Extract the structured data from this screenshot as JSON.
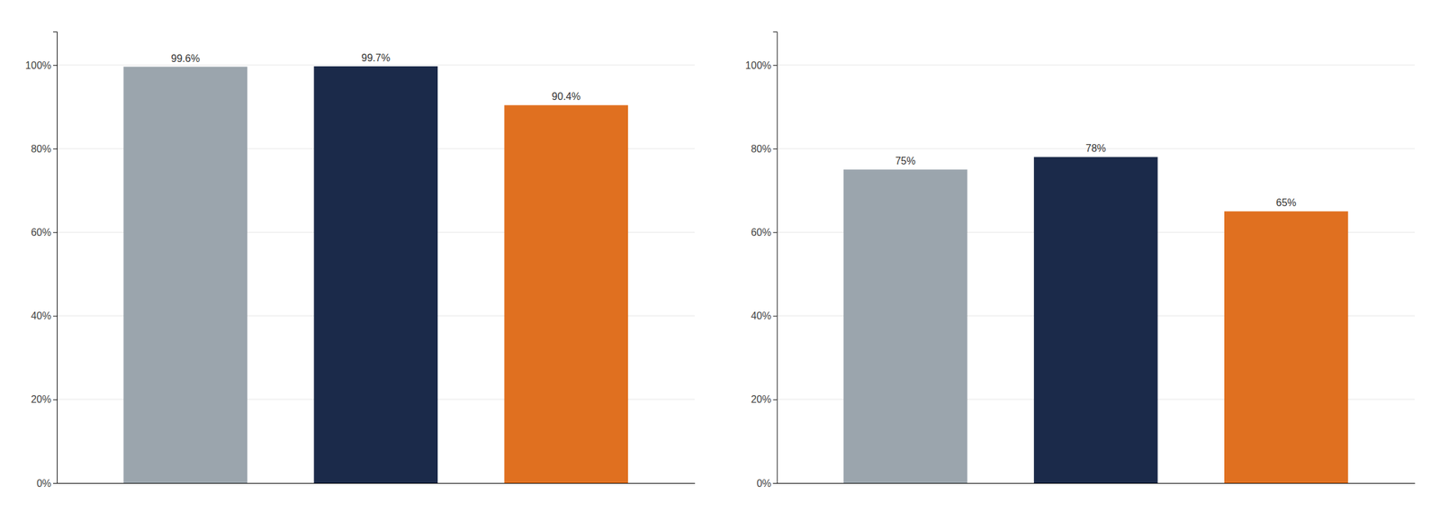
{
  "chart_data": [
    {
      "type": "bar",
      "categories": [
        null,
        null,
        null
      ],
      "values": [
        99.6,
        99.7,
        90.4
      ],
      "value_labels": [
        "99.6%",
        "99.7%",
        "90.4%"
      ],
      "colors": [
        "#9ba5ad",
        "#1b2a4a",
        "#e07020"
      ],
      "ylim": [
        0,
        108
      ],
      "yticks": [
        {
          "value": 0,
          "label": "0%"
        },
        {
          "value": 20,
          "label": "20%"
        },
        {
          "value": 40,
          "label": "40%"
        },
        {
          "value": 60,
          "label": "60%"
        },
        {
          "value": 80,
          "label": "80%"
        },
        {
          "value": 100,
          "label": "100%"
        }
      ],
      "grid": true,
      "data_labels": true
    },
    {
      "type": "bar",
      "categories": [
        null,
        null,
        null
      ],
      "values": [
        75,
        78,
        65
      ],
      "value_labels": [
        "75%",
        "78%",
        "65%"
      ],
      "colors": [
        "#9ba5ad",
        "#1b2a4a",
        "#e07020"
      ],
      "ylim": [
        0,
        108
      ],
      "yticks": [
        {
          "value": 0,
          "label": "0%"
        },
        {
          "value": 20,
          "label": "20%"
        },
        {
          "value": 40,
          "label": "40%"
        },
        {
          "value": 60,
          "label": "60%"
        },
        {
          "value": 80,
          "label": "80%"
        },
        {
          "value": 100,
          "label": "100%"
        }
      ],
      "grid": true,
      "data_labels": true
    }
  ]
}
